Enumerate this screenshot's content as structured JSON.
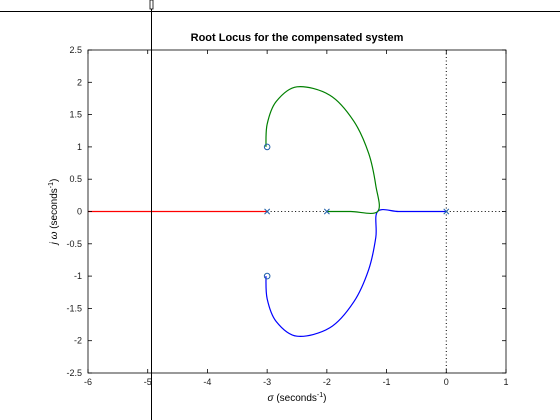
{
  "chart_data": {
    "type": "line",
    "title": "Root Locus for the compensated system",
    "xlabel": {
      "symbol": "σ",
      "main": " (seconds",
      "sup": "-1",
      "end": ")"
    },
    "ylabel": {
      "symbol": "j ω",
      "main": " (seconds",
      "sup": "-1",
      "end": ")"
    },
    "xlim": [
      -6,
      1
    ],
    "ylim": [
      -2.5,
      2.5
    ],
    "xticks": [
      "-6",
      "-5",
      "-4",
      "-3",
      "-2",
      "-1",
      "0",
      "1"
    ],
    "yticks": [
      "2.5",
      "2",
      "1.5",
      "1",
      "0.5",
      "0",
      "-0.5",
      "-1",
      "-1.5",
      "-2",
      "-2.5"
    ],
    "grid": false,
    "series": [
      {
        "color": "#0000ff",
        "points": [
          [
            0,
            0
          ],
          [
            -0.4,
            0
          ],
          [
            -0.8,
            0
          ],
          [
            -1.15,
            0
          ],
          [
            -1.18,
            -0.4
          ],
          [
            -1.3,
            -0.9
          ],
          [
            -1.55,
            -1.4
          ],
          [
            -1.95,
            -1.8
          ],
          [
            -2.5,
            -1.93
          ],
          [
            -2.85,
            -1.7
          ],
          [
            -3.0,
            -1.35
          ],
          [
            -3.02,
            -1.0
          ]
        ]
      },
      {
        "color": "#008000",
        "points": [
          [
            -2,
            0
          ],
          [
            -1.6,
            0
          ],
          [
            -1.15,
            0
          ],
          [
            -1.18,
            0.4
          ],
          [
            -1.3,
            0.9
          ],
          [
            -1.55,
            1.4
          ],
          [
            -1.95,
            1.8
          ],
          [
            -2.5,
            1.93
          ],
          [
            -2.85,
            1.7
          ],
          [
            -3.0,
            1.35
          ],
          [
            -3.02,
            1.0
          ]
        ]
      },
      {
        "color": "#ff0000",
        "points": [
          [
            -3,
            0
          ],
          [
            -4.5,
            0
          ],
          [
            -6,
            0
          ]
        ]
      }
    ],
    "poles": [
      [
        0,
        0
      ],
      [
        -2,
        0
      ],
      [
        -3,
        0
      ]
    ],
    "zeros": [
      [
        -3,
        1
      ],
      [
        -3,
        -1
      ]
    ],
    "dotted_segments": [
      {
        "from": [
          -3,
          0
        ],
        "to": [
          -2,
          0
        ]
      },
      {
        "from": [
          0,
          0
        ],
        "to": [
          1,
          0
        ]
      },
      {
        "from": [
          0,
          -2.5
        ],
        "to": [
          0,
          2.5
        ]
      }
    ],
    "crosshair": {
      "x": -4.95
    }
  }
}
